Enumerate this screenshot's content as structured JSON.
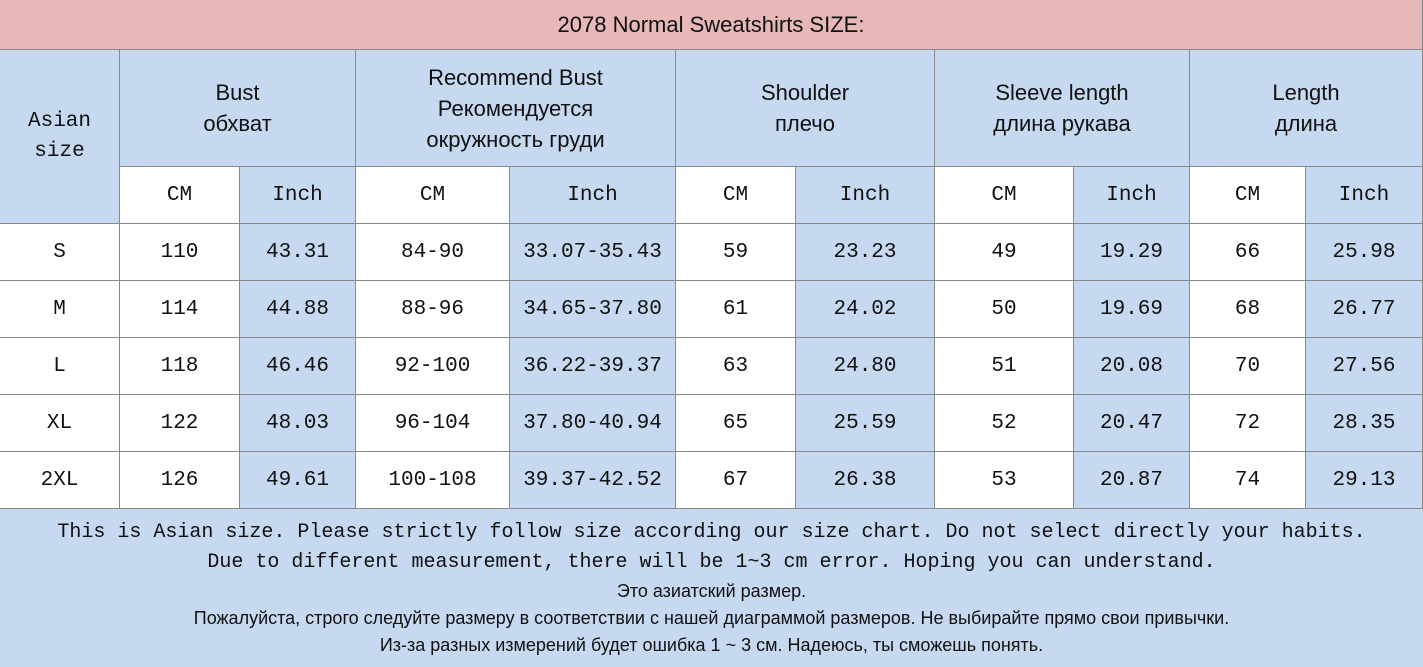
{
  "title": "2078 Normal Sweatshirts SIZE:",
  "table": {
    "corner": "Asian size",
    "groups": [
      {
        "lines": [
          "Bust",
          "обхват"
        ]
      },
      {
        "lines": [
          "Recommend Bust",
          "Рекомендуется",
          "окружность груди"
        ]
      },
      {
        "lines": [
          "Shoulder",
          "плечо"
        ]
      },
      {
        "lines": [
          "Sleeve length",
          "длина рукава"
        ]
      },
      {
        "lines": [
          "Length",
          "длина"
        ]
      }
    ],
    "subheaders": [
      "CM",
      "Inch",
      "CM",
      "Inch",
      "CM",
      "Inch",
      "CM",
      "Inch",
      "CM",
      "Inch"
    ],
    "rows": [
      [
        "S",
        "110",
        "43.31",
        "84-90",
        "33.07-35.43",
        "59",
        "23.23",
        "49",
        "19.29",
        "66",
        "25.98"
      ],
      [
        "M",
        "114",
        "44.88",
        "88-96",
        "34.65-37.80",
        "61",
        "24.02",
        "50",
        "19.69",
        "68",
        "26.77"
      ],
      [
        "L",
        "118",
        "46.46",
        "92-100",
        "36.22-39.37",
        "63",
        "24.80",
        "51",
        "20.08",
        "70",
        "27.56"
      ],
      [
        "XL",
        "122",
        "48.03",
        "96-104",
        "37.80-40.94",
        "65",
        "25.59",
        "52",
        "20.47",
        "72",
        "28.35"
      ],
      [
        "2XL",
        "126",
        "49.61",
        "100-108",
        "39.37-42.52",
        "67",
        "26.38",
        "53",
        "20.87",
        "74",
        "29.13"
      ]
    ]
  },
  "footer": {
    "lines": [
      "This is Asian size. Please strictly follow size according our size chart. Do not select directly your habits.",
      "Due to different measurement, there will be 1~3 cm error. Hoping you can understand.",
      "Это азиатский размер.",
      "Пожалуйста, строго следуйте размеру в соответствии с нашей диаграммой размеров. Не выбирайте прямо свои привычки.",
      "Из-за разных измерений будет ошибка 1 ~ 3 см. Надеюсь, ты сможешь понять."
    ]
  }
}
